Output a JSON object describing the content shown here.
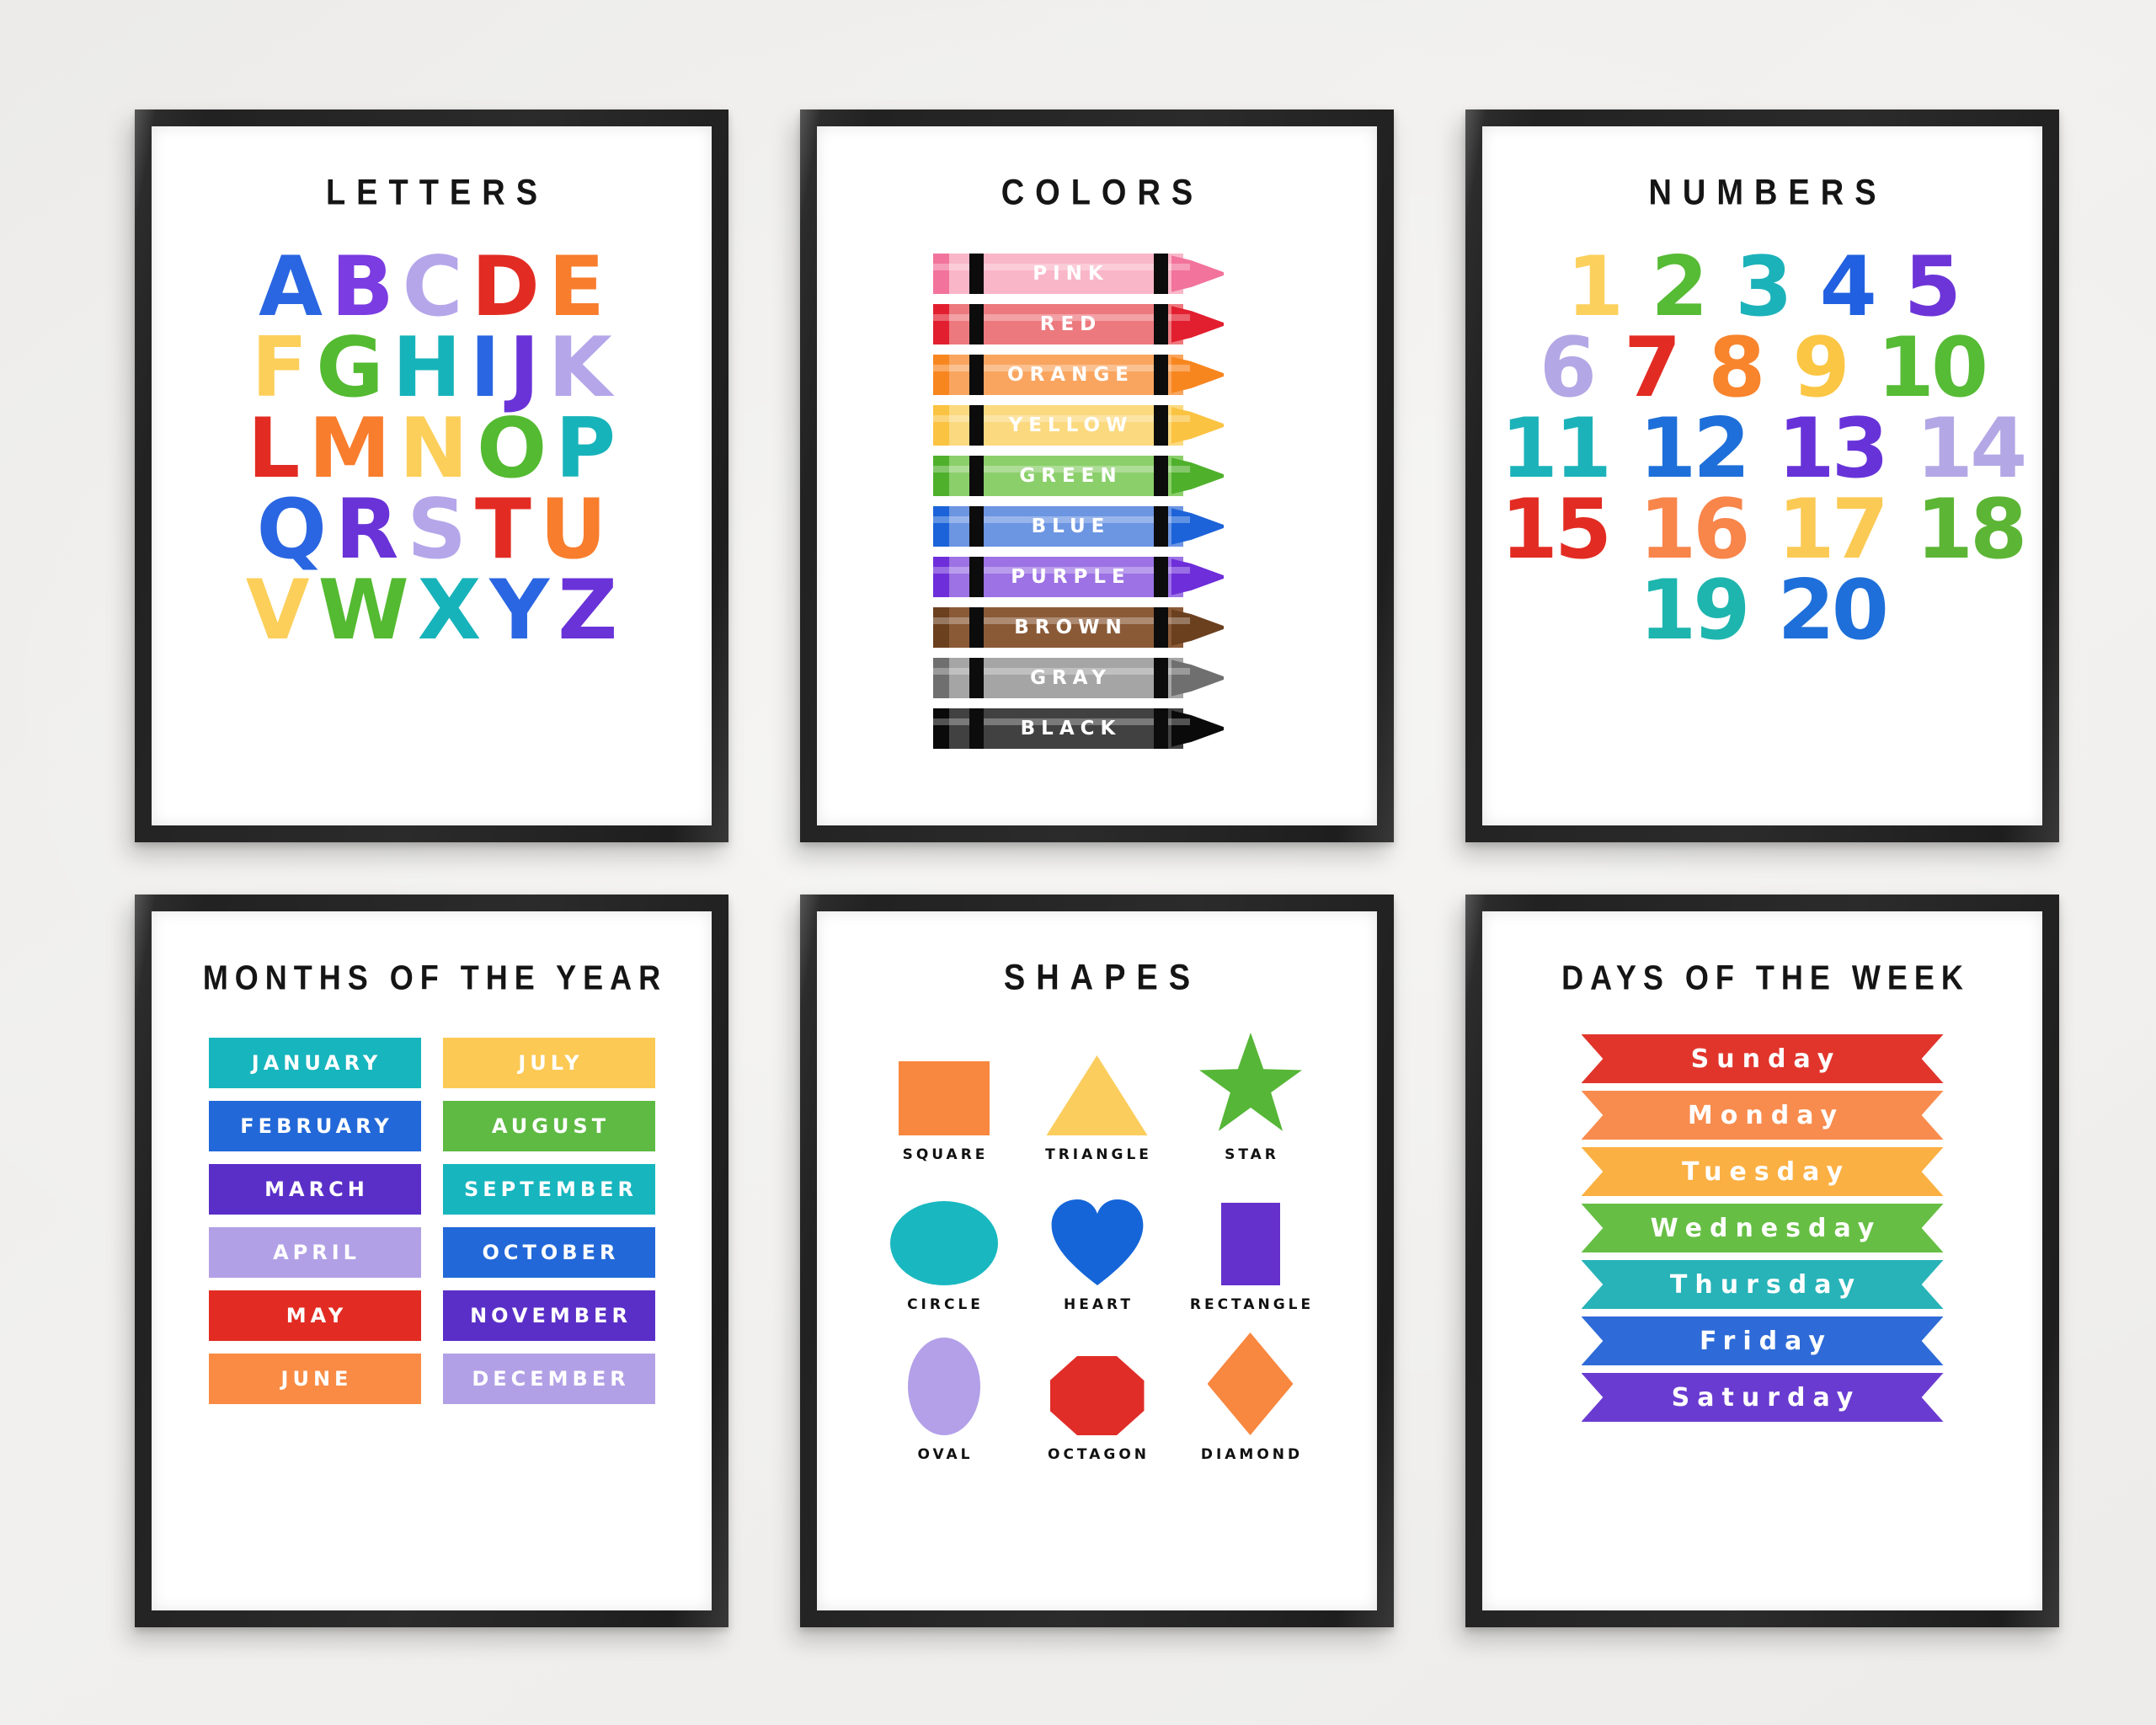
{
  "wall": {
    "background": "#f0efed",
    "frame_color": "#2b2b2b",
    "paper_color": "#ffffff"
  },
  "posters": {
    "letters": {
      "title": "LETTERS",
      "rows": [
        [
          {
            "ch": "A",
            "color": "#2a66e2"
          },
          {
            "ch": "B",
            "color": "#7b3ce2"
          },
          {
            "ch": "C",
            "color": "#b5a6ea"
          },
          {
            "ch": "D",
            "color": "#e22c23"
          },
          {
            "ch": "E",
            "color": "#f87d2d"
          }
        ],
        [
          {
            "ch": "F",
            "color": "#fccf5a"
          },
          {
            "ch": "G",
            "color": "#54ba31"
          },
          {
            "ch": "H",
            "color": "#17b3ba"
          },
          {
            "ch": "I",
            "color": "#2a66e2"
          },
          {
            "ch": "J",
            "color": "#6933d8"
          },
          {
            "ch": "K",
            "color": "#b5a6ea"
          }
        ],
        [
          {
            "ch": "L",
            "color": "#e22c23"
          },
          {
            "ch": "M",
            "color": "#f87d2d"
          },
          {
            "ch": "N",
            "color": "#fccf5a"
          },
          {
            "ch": "O",
            "color": "#54ba31"
          },
          {
            "ch": "P",
            "color": "#17b3ba"
          }
        ],
        [
          {
            "ch": "Q",
            "color": "#2a66e2"
          },
          {
            "ch": "R",
            "color": "#6933d8"
          },
          {
            "ch": "S",
            "color": "#b5a6ea"
          },
          {
            "ch": "T",
            "color": "#e22c23"
          },
          {
            "ch": "U",
            "color": "#f87d2d"
          }
        ],
        [
          {
            "ch": "V",
            "color": "#fccf5a"
          },
          {
            "ch": "W",
            "color": "#54ba31"
          },
          {
            "ch": "X",
            "color": "#17b3ba"
          },
          {
            "ch": "Y",
            "color": "#2a66e2"
          },
          {
            "ch": "Z",
            "color": "#6933d8"
          }
        ]
      ]
    },
    "colors": {
      "title": "COLORS",
      "crayons": [
        {
          "label": "PINK",
          "body": "#f9b6c8",
          "dark": "#f2739c"
        },
        {
          "label": "RED",
          "body": "#ec797e",
          "dark": "#e21f2f"
        },
        {
          "label": "ORANGE",
          "body": "#f9a55f",
          "dark": "#f8861f"
        },
        {
          "label": "YELLOW",
          "body": "#fbd97f",
          "dark": "#fbc342"
        },
        {
          "label": "GREEN",
          "body": "#8bcf6b",
          "dark": "#4fb02c"
        },
        {
          "label": "BLUE",
          "body": "#6c95e2",
          "dark": "#1c63d9"
        },
        {
          "label": "PURPLE",
          "body": "#9c72e4",
          "dark": "#6e2ed9"
        },
        {
          "label": "BROWN",
          "body": "#8a5a37",
          "dark": "#6b401f"
        },
        {
          "label": "GRAY",
          "body": "#a5a5a5",
          "dark": "#6f6f6f"
        },
        {
          "label": "BLACK",
          "body": "#414141",
          "dark": "#0a0a0a"
        }
      ]
    },
    "numbers": {
      "title": "NUMBERS",
      "rows": [
        [
          {
            "ch": "1",
            "color": "#fcd05c"
          },
          {
            "ch": "2",
            "color": "#56bb35"
          },
          {
            "ch": "3",
            "color": "#1cb2ba"
          },
          {
            "ch": "4",
            "color": "#2160e0"
          },
          {
            "ch": "5",
            "color": "#6d35d8"
          }
        ],
        [
          {
            "ch": "6",
            "color": "#b4a7e5"
          },
          {
            "ch": "7",
            "color": "#e22c23"
          },
          {
            "ch": "8",
            "color": "#f8842c"
          },
          {
            "ch": "9",
            "color": "#fbc644"
          },
          {
            "ch": "10",
            "color": "#56bb35"
          }
        ],
        [
          {
            "ch": "11",
            "color": "#1cb2ba"
          },
          {
            "ch": "12",
            "color": "#1e6fd9"
          },
          {
            "ch": "13",
            "color": "#6733d9"
          },
          {
            "ch": "14",
            "color": "#b4a7e5"
          }
        ],
        [
          {
            "ch": "15",
            "color": "#e22c23"
          },
          {
            "ch": "16",
            "color": "#f8854a"
          },
          {
            "ch": "17",
            "color": "#fbca55"
          },
          {
            "ch": "18",
            "color": "#5cb535"
          }
        ],
        [
          {
            "ch": "19",
            "color": "#1db5ae"
          },
          {
            "ch": "20",
            "color": "#1e6fd9"
          }
        ]
      ]
    },
    "months": {
      "title": "MONTHS OF THE YEAR",
      "left": [
        {
          "label": "JANUARY",
          "color": "#17b5be"
        },
        {
          "label": "FEBRUARY",
          "color": "#2268d8"
        },
        {
          "label": "MARCH",
          "color": "#5a2fc8"
        },
        {
          "label": "APRIL",
          "color": "#b2a0e6"
        },
        {
          "label": "MAY",
          "color": "#e22c23"
        },
        {
          "label": "JUNE",
          "color": "#f98b44"
        }
      ],
      "right": [
        {
          "label": "JULY",
          "color": "#fbc954"
        },
        {
          "label": "AUGUST",
          "color": "#5eba43"
        },
        {
          "label": "SEPTEMBER",
          "color": "#17b5be"
        },
        {
          "label": "OCTOBER",
          "color": "#2268d8"
        },
        {
          "label": "NOVEMBER",
          "color": "#5a2fc8"
        },
        {
          "label": "DECEMBER",
          "color": "#b2a0e6"
        }
      ]
    },
    "shapes": {
      "title": "SHAPES",
      "items": [
        {
          "label": "SQUARE",
          "shape": "square",
          "color": "#f8873f"
        },
        {
          "label": "TRIANGLE",
          "shape": "triangle",
          "color": "#fbcd5d"
        },
        {
          "label": "STAR",
          "shape": "star",
          "color": "#56b637"
        },
        {
          "label": "CIRCLE",
          "shape": "circle",
          "color": "#19b8c0"
        },
        {
          "label": "HEART",
          "shape": "heart",
          "color": "#1565d8"
        },
        {
          "label": "RECTANGLE",
          "shape": "rectangle",
          "color": "#6531cc"
        },
        {
          "label": "OVAL",
          "shape": "oval",
          "color": "#b3a0e8"
        },
        {
          "label": "OCTAGON",
          "shape": "octagon",
          "color": "#e02d28"
        },
        {
          "label": "DIAMOND",
          "shape": "diamond",
          "color": "#f8873f"
        }
      ]
    },
    "days": {
      "title": "DAYS OF THE WEEK",
      "items": [
        {
          "label": "Sunday",
          "color": "#e1352c"
        },
        {
          "label": "Monday",
          "color": "#f88c4e"
        },
        {
          "label": "Tuesday",
          "color": "#fbb043"
        },
        {
          "label": "Wednesday",
          "color": "#66bf44"
        },
        {
          "label": "Thursday",
          "color": "#27b3b8"
        },
        {
          "label": "Friday",
          "color": "#2e6bd8"
        },
        {
          "label": "Saturday",
          "color": "#6a3bd0"
        }
      ]
    }
  }
}
